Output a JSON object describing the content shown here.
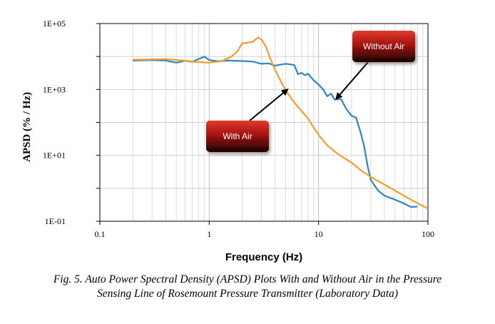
{
  "chart_data": {
    "type": "line",
    "xscale": "log",
    "yscale": "log",
    "xlim": [
      0.1,
      100
    ],
    "ylim": [
      0.1,
      100000
    ],
    "xlabel": "Frequency (Hz)",
    "ylabel": "APSD (% / Hz)",
    "x_ticks": [
      {
        "value": 0.1,
        "label": "0.1"
      },
      {
        "value": 1,
        "label": "1"
      },
      {
        "value": 10,
        "label": "10"
      },
      {
        "value": 100,
        "label": "100"
      }
    ],
    "y_ticks": [
      {
        "value": 100000,
        "label": "1E+05"
      },
      {
        "value": 1000,
        "label": "1E+03"
      },
      {
        "value": 10,
        "label": "1E+01"
      },
      {
        "value": 0.1,
        "label": "1E-01"
      }
    ],
    "y_minor_ticks": [
      10000,
      100,
      1
    ],
    "grid": true,
    "series": [
      {
        "name": "Without Air",
        "color": "#2E86C1",
        "points": [
          [
            0.2,
            7500
          ],
          [
            0.3,
            7800
          ],
          [
            0.4,
            7500
          ],
          [
            0.5,
            6500
          ],
          [
            0.6,
            7400
          ],
          [
            0.7,
            6900
          ],
          [
            0.8,
            8400
          ],
          [
            0.9,
            10000
          ],
          [
            1.0,
            7800
          ],
          [
            1.2,
            7200
          ],
          [
            1.5,
            7500
          ],
          [
            2.0,
            7300
          ],
          [
            2.5,
            7000
          ],
          [
            3.0,
            6000
          ],
          [
            3.5,
            6200
          ],
          [
            4.0,
            5300
          ],
          [
            5.0,
            6000
          ],
          [
            5.5,
            5800
          ],
          [
            6.0,
            5500
          ],
          [
            6.5,
            2900
          ],
          [
            7.0,
            3200
          ],
          [
            7.5,
            2700
          ],
          [
            8.0,
            3000
          ],
          [
            9.0,
            1900
          ],
          [
            10,
            1400
          ],
          [
            11,
            1000
          ],
          [
            12,
            620
          ],
          [
            13,
            750
          ],
          [
            14,
            490
          ],
          [
            16,
            510
          ],
          [
            18,
            250
          ],
          [
            20,
            160
          ],
          [
            22,
            140
          ],
          [
            24,
            55
          ],
          [
            26,
            20
          ],
          [
            28,
            5
          ],
          [
            30,
            1.8
          ],
          [
            35,
            0.85
          ],
          [
            40,
            0.6
          ],
          [
            50,
            0.45
          ],
          [
            60,
            0.35
          ],
          [
            70,
            0.27
          ],
          [
            80,
            0.28
          ]
        ]
      },
      {
        "name": "With Air",
        "color": "#F39C2B",
        "points": [
          [
            0.2,
            8000
          ],
          [
            0.25,
            8000
          ],
          [
            0.3,
            8200
          ],
          [
            0.4,
            8300
          ],
          [
            0.5,
            7800
          ],
          [
            0.6,
            7500
          ],
          [
            0.7,
            7000
          ],
          [
            0.8,
            6800
          ],
          [
            1.0,
            6500
          ],
          [
            1.3,
            7200
          ],
          [
            1.6,
            10000
          ],
          [
            1.8,
            14000
          ],
          [
            2.0,
            25000
          ],
          [
            2.2,
            26000
          ],
          [
            2.5,
            28000
          ],
          [
            2.8,
            38000
          ],
          [
            3.0,
            33000
          ],
          [
            3.3,
            20000
          ],
          [
            3.6,
            9000
          ],
          [
            4.0,
            4000
          ],
          [
            4.5,
            1800
          ],
          [
            5.0,
            950
          ],
          [
            5.5,
            600
          ],
          [
            6.0,
            400
          ],
          [
            7.0,
            220
          ],
          [
            8.0,
            130
          ],
          [
            9.0,
            70
          ],
          [
            10,
            42
          ],
          [
            12,
            20
          ],
          [
            15,
            11
          ],
          [
            20,
            6
          ],
          [
            25,
            3.3
          ],
          [
            30,
            2.2
          ],
          [
            40,
            1.3
          ],
          [
            50,
            0.85
          ],
          [
            70,
            0.45
          ],
          [
            100,
            0.24
          ]
        ]
      }
    ],
    "annotations": [
      {
        "text": "With Air",
        "arrow_to": [
          5.2,
          1000
        ]
      },
      {
        "text": "Without Air",
        "arrow_to": [
          14.5,
          520
        ]
      }
    ]
  },
  "caption": {
    "line1": "Fig. 5. Auto Power Spectral Density (APSD) Plots With and Without Air in the Pressure",
    "line2": "Sensing Line of Rosemount Pressure Transmitter (Laboratory Data)"
  }
}
